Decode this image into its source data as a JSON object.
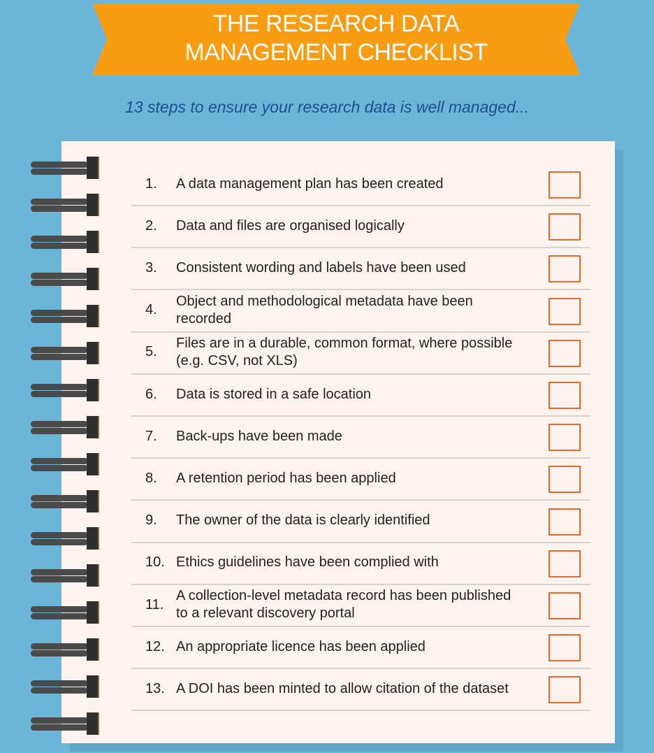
{
  "title_lines": [
    "THE RESEARCH DATA",
    "MANAGEMENT CHECKLIST"
  ],
  "subtitle": "13 steps to ensure your research data is well managed...",
  "colors": {
    "background": "#6bb5d9",
    "banner": "#f89c12",
    "subtitle": "#1c4f8f",
    "paper": "#fcf2ee",
    "checkbox": "#e8692c"
  },
  "items": [
    {
      "num": "1.",
      "text": "A data management plan has been created",
      "checked": false
    },
    {
      "num": "2.",
      "text": "Data and files are organised logically",
      "checked": false
    },
    {
      "num": "3.",
      "text": "Consistent wording and labels have been used",
      "checked": false
    },
    {
      "num": "4.",
      "text": "Object and methodological metadata have been recorded",
      "checked": false
    },
    {
      "num": "5.",
      "text": "Files are in a durable, common format, where possible (e.g. CSV, not XLS)",
      "checked": false
    },
    {
      "num": "6.",
      "text": "Data is stored in a safe location",
      "checked": false
    },
    {
      "num": "7.",
      "text": "Back-ups have been made",
      "checked": false
    },
    {
      "num": "8.",
      "text": "A retention period has been applied",
      "checked": false
    },
    {
      "num": "9.",
      "text": "The owner of the data is clearly identified",
      "checked": false
    },
    {
      "num": "10.",
      "text": "Ethics guidelines have been complied with",
      "checked": false
    },
    {
      "num": "11.",
      "text": "A collection-level metadata record has been published to a relevant discovery portal",
      "checked": false
    },
    {
      "num": "12.",
      "text": "An appropriate licence has been applied",
      "checked": false
    },
    {
      "num": "13.",
      "text": "A DOI has been minted to allow citation of the dataset",
      "checked": false
    }
  ]
}
